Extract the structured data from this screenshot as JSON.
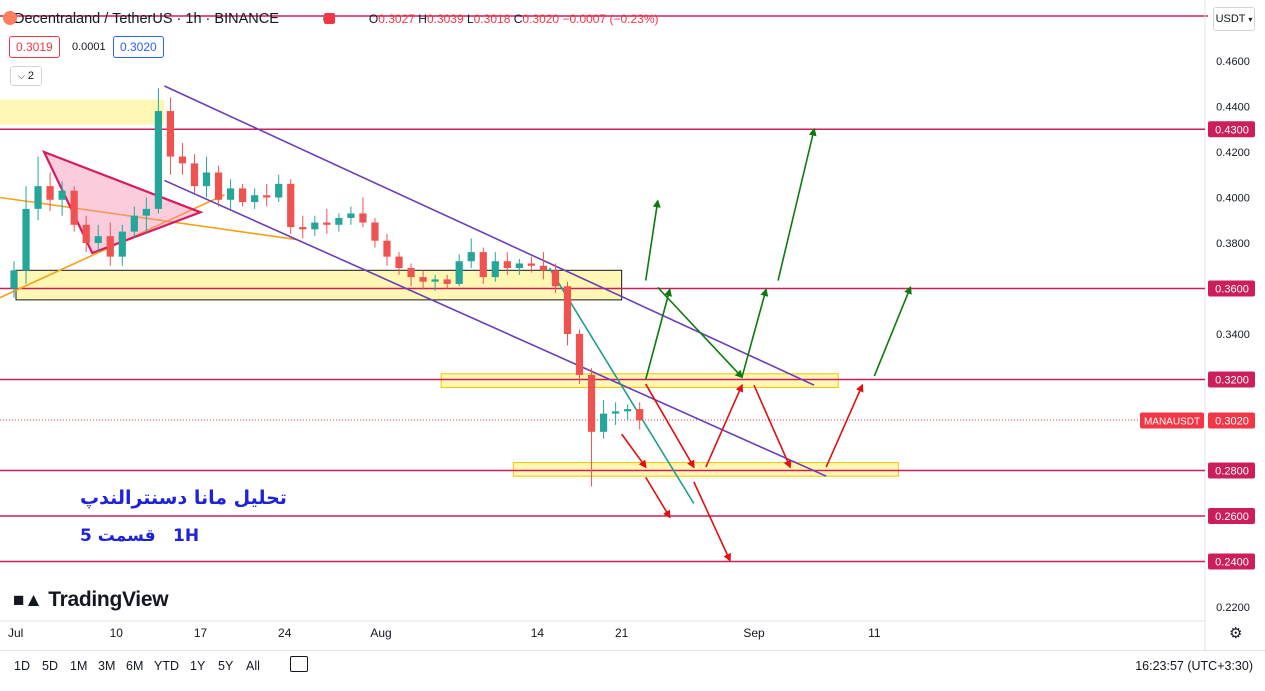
{
  "header": {
    "symbol": "Decentraland / TetherUS · 1h · BINANCE",
    "open_label": "O",
    "open": "0.3027",
    "high_label": "H",
    "high": "0.3039",
    "low_label": "L",
    "low": "0.3018",
    "close_label": "C",
    "close": "0.3020",
    "change": "−0.0007 (−0.23%)"
  },
  "trade": {
    "sell": "0.3019",
    "spread": "0.0001",
    "buy": "0.3020"
  },
  "indicators_count": "2",
  "currency": "USDT",
  "logo": "TradingView",
  "annotation": {
    "title": "تحلیل مانا دسنترالندپ",
    "part": "قسمت 5",
    "timeframe": "1H"
  },
  "range_buttons": [
    "1D",
    "5D",
    "1M",
    "3M",
    "6M",
    "YTD",
    "1Y",
    "5Y",
    "All"
  ],
  "clock": "16:23:57 (UTC+3:30)",
  "colors": {
    "level": "#cc1f5a",
    "zone": "#fff176",
    "channel": "#6a3db8",
    "wedge": "#f6a01a",
    "up": "#26a69a",
    "down": "#ef5350",
    "arrow_up": "#0d7a0d",
    "arrow_down": "#e01010",
    "trend": "#1e9e8e"
  },
  "chart_data": {
    "type": "candlestick",
    "symbol": "MANAUSDT",
    "last_price": 0.302,
    "y_ticks": [
      "0.4600",
      "0.4400",
      "0.4200",
      "0.4000",
      "0.3800",
      "0.3400",
      "0.2200"
    ],
    "x_ticks": [
      "Jul",
      "10",
      "17",
      "24",
      "Aug",
      "14",
      "21",
      "Sep",
      "11"
    ],
    "horizontal_levels": [
      "0.4300",
      "0.3600",
      "0.3200",
      "0.2800",
      "0.2600",
      "0.2400"
    ],
    "last_price_label": "MANAUSDT",
    "last_price_value": "0.3020",
    "ylim": [
      0.213,
      0.468
    ],
    "candles": [
      {
        "t": "2023-07-01",
        "o": 0.36,
        "h": 0.372,
        "l": 0.356,
        "c": 0.368
      },
      {
        "t": "2023-07-02",
        "o": 0.368,
        "h": 0.405,
        "l": 0.362,
        "c": 0.395
      },
      {
        "t": "2023-07-03",
        "o": 0.395,
        "h": 0.418,
        "l": 0.39,
        "c": 0.405
      },
      {
        "t": "2023-07-04",
        "o": 0.405,
        "h": 0.411,
        "l": 0.394,
        "c": 0.399
      },
      {
        "t": "2023-07-05",
        "o": 0.399,
        "h": 0.407,
        "l": 0.392,
        "c": 0.403
      },
      {
        "t": "2023-07-06",
        "o": 0.403,
        "h": 0.405,
        "l": 0.385,
        "c": 0.388
      },
      {
        "t": "2023-07-07",
        "o": 0.388,
        "h": 0.392,
        "l": 0.376,
        "c": 0.38
      },
      {
        "t": "2023-07-08",
        "o": 0.38,
        "h": 0.388,
        "l": 0.376,
        "c": 0.383
      },
      {
        "t": "2023-07-09",
        "o": 0.383,
        "h": 0.389,
        "l": 0.37,
        "c": 0.374
      },
      {
        "t": "2023-07-10",
        "o": 0.374,
        "h": 0.388,
        "l": 0.37,
        "c": 0.385
      },
      {
        "t": "2023-07-11",
        "o": 0.385,
        "h": 0.396,
        "l": 0.382,
        "c": 0.392
      },
      {
        "t": "2023-07-12",
        "o": 0.392,
        "h": 0.4,
        "l": 0.384,
        "c": 0.395
      },
      {
        "t": "2023-07-13",
        "o": 0.395,
        "h": 0.448,
        "l": 0.393,
        "c": 0.438
      },
      {
        "t": "2023-07-14",
        "o": 0.438,
        "h": 0.444,
        "l": 0.41,
        "c": 0.418
      },
      {
        "t": "2023-07-15",
        "o": 0.418,
        "h": 0.424,
        "l": 0.41,
        "c": 0.415
      },
      {
        "t": "2023-07-16",
        "o": 0.415,
        "h": 0.419,
        "l": 0.402,
        "c": 0.405
      },
      {
        "t": "2023-07-17",
        "o": 0.405,
        "h": 0.418,
        "l": 0.4,
        "c": 0.411
      },
      {
        "t": "2023-07-18",
        "o": 0.411,
        "h": 0.414,
        "l": 0.396,
        "c": 0.399
      },
      {
        "t": "2023-07-19",
        "o": 0.399,
        "h": 0.408,
        "l": 0.395,
        "c": 0.404
      },
      {
        "t": "2023-07-20",
        "o": 0.404,
        "h": 0.406,
        "l": 0.396,
        "c": 0.398
      },
      {
        "t": "2023-07-21",
        "o": 0.398,
        "h": 0.404,
        "l": 0.395,
        "c": 0.401
      },
      {
        "t": "2023-07-22",
        "o": 0.401,
        "h": 0.406,
        "l": 0.396,
        "c": 0.4
      },
      {
        "t": "2023-07-23",
        "o": 0.4,
        "h": 0.41,
        "l": 0.398,
        "c": 0.406
      },
      {
        "t": "2023-07-24",
        "o": 0.406,
        "h": 0.408,
        "l": 0.384,
        "c": 0.387
      },
      {
        "t": "2023-07-25",
        "o": 0.387,
        "h": 0.392,
        "l": 0.382,
        "c": 0.386
      },
      {
        "t": "2023-07-26",
        "o": 0.386,
        "h": 0.392,
        "l": 0.383,
        "c": 0.389
      },
      {
        "t": "2023-07-27",
        "o": 0.389,
        "h": 0.395,
        "l": 0.384,
        "c": 0.388
      },
      {
        "t": "2023-07-28",
        "o": 0.388,
        "h": 0.393,
        "l": 0.385,
        "c": 0.391
      },
      {
        "t": "2023-07-29",
        "o": 0.391,
        "h": 0.396,
        "l": 0.388,
        "c": 0.393
      },
      {
        "t": "2023-07-30",
        "o": 0.393,
        "h": 0.4,
        "l": 0.387,
        "c": 0.389
      },
      {
        "t": "2023-07-31",
        "o": 0.389,
        "h": 0.391,
        "l": 0.378,
        "c": 0.381
      },
      {
        "t": "2023-08-01",
        "o": 0.381,
        "h": 0.384,
        "l": 0.37,
        "c": 0.374
      },
      {
        "t": "2023-08-02",
        "o": 0.374,
        "h": 0.376,
        "l": 0.366,
        "c": 0.369
      },
      {
        "t": "2023-08-03",
        "o": 0.369,
        "h": 0.371,
        "l": 0.361,
        "c": 0.365
      },
      {
        "t": "2023-08-04",
        "o": 0.365,
        "h": 0.368,
        "l": 0.36,
        "c": 0.363
      },
      {
        "t": "2023-08-05",
        "o": 0.363,
        "h": 0.366,
        "l": 0.359,
        "c": 0.364
      },
      {
        "t": "2023-08-06",
        "o": 0.364,
        "h": 0.366,
        "l": 0.36,
        "c": 0.362
      },
      {
        "t": "2023-08-07",
        "o": 0.362,
        "h": 0.375,
        "l": 0.361,
        "c": 0.372
      },
      {
        "t": "2023-08-08",
        "o": 0.372,
        "h": 0.382,
        "l": 0.369,
        "c": 0.376
      },
      {
        "t": "2023-08-09",
        "o": 0.376,
        "h": 0.378,
        "l": 0.362,
        "c": 0.365
      },
      {
        "t": "2023-08-10",
        "o": 0.365,
        "h": 0.376,
        "l": 0.363,
        "c": 0.372
      },
      {
        "t": "2023-08-11",
        "o": 0.372,
        "h": 0.376,
        "l": 0.366,
        "c": 0.369
      },
      {
        "t": "2023-08-12",
        "o": 0.369,
        "h": 0.373,
        "l": 0.366,
        "c": 0.371
      },
      {
        "t": "2023-08-13",
        "o": 0.371,
        "h": 0.374,
        "l": 0.367,
        "c": 0.37
      },
      {
        "t": "2023-08-14",
        "o": 0.37,
        "h": 0.376,
        "l": 0.364,
        "c": 0.368
      },
      {
        "t": "2023-08-15",
        "o": 0.368,
        "h": 0.371,
        "l": 0.358,
        "c": 0.361
      },
      {
        "t": "2023-08-16",
        "o": 0.361,
        "h": 0.363,
        "l": 0.335,
        "c": 0.34
      },
      {
        "t": "2023-08-17",
        "o": 0.34,
        "h": 0.342,
        "l": 0.318,
        "c": 0.322
      },
      {
        "t": "2023-08-18",
        "o": 0.322,
        "h": 0.325,
        "l": 0.273,
        "c": 0.297
      },
      {
        "t": "2023-08-19",
        "o": 0.297,
        "h": 0.311,
        "l": 0.294,
        "c": 0.305
      },
      {
        "t": "2023-08-20",
        "o": 0.305,
        "h": 0.31,
        "l": 0.3,
        "c": 0.306
      },
      {
        "t": "2023-08-21",
        "o": 0.306,
        "h": 0.309,
        "l": 0.302,
        "c": 0.307
      },
      {
        "t": "2023-08-22",
        "o": 0.307,
        "h": 0.31,
        "l": 0.298,
        "c": 0.302
      }
    ]
  }
}
